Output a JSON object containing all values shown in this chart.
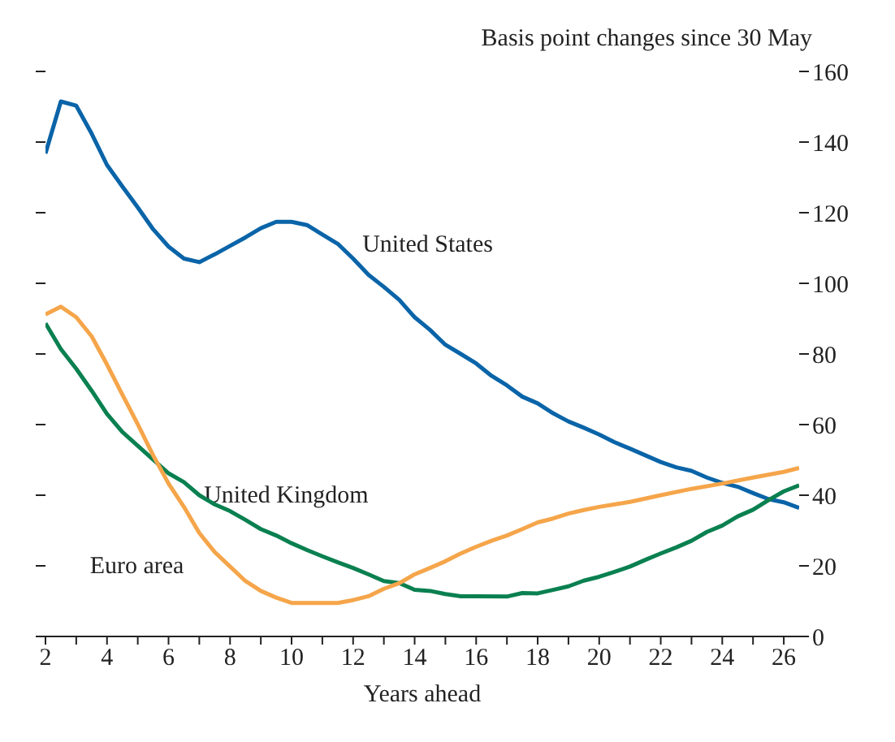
{
  "chart_data": {
    "type": "line",
    "xlabel": "Years ahead",
    "ylabel": "Basis point changes since 30 May",
    "xlim": [
      2,
      26.5
    ],
    "xticks": [
      2,
      {
        "value": 3,
        "label": null
      },
      4,
      {
        "value": 5,
        "label": null
      },
      6,
      {
        "value": 7,
        "label": null
      },
      8,
      {
        "value": 9,
        "label": null
      },
      10,
      {
        "value": 11,
        "label": null
      },
      12,
      {
        "value": 13,
        "label": null
      },
      14,
      {
        "value": 15,
        "label": null
      },
      16,
      {
        "value": 17,
        "label": null
      },
      18,
      {
        "value": 19,
        "label": null
      },
      20,
      {
        "value": 21,
        "label": null
      },
      22,
      {
        "value": 23,
        "label": null
      },
      24,
      {
        "value": 25,
        "label": null
      },
      26
    ],
    "ylim": [
      0,
      160
    ],
    "yticks": [
      0,
      20,
      40,
      60,
      80,
      100,
      120,
      140,
      160
    ],
    "grid": false,
    "legend": false,
    "marker": "none",
    "line_style": "solid",
    "series": [
      {
        "name": "United States",
        "color": "#0a64a8",
        "x": [
          2,
          2.5,
          3,
          3.5,
          4,
          4.5,
          5,
          5.5,
          6,
          6.5,
          7,
          7.5,
          8,
          8.5,
          9,
          9.5,
          10,
          10.5,
          11,
          11.5,
          12,
          12.5,
          13,
          13.5,
          14,
          14.5,
          15,
          15.5,
          16,
          16.5,
          17,
          17.5,
          18,
          18.5,
          19,
          19.5,
          20,
          20.5,
          21,
          21.5,
          22,
          22.5,
          23,
          23.5,
          24,
          24.5,
          25,
          25.5,
          26,
          26.5
        ],
        "values": [
          136.8,
          151.5,
          150.3,
          142.4,
          133.5,
          127.4,
          121.5,
          115.3,
          110.4,
          107,
          106,
          108.2,
          110.6,
          113,
          115.6,
          117.4,
          117.4,
          116.5,
          113.8,
          111.2,
          107,
          102.4,
          99,
          95.3,
          90.4,
          86.8,
          82.6,
          80,
          77.3,
          73.8,
          71.1,
          67.9,
          66,
          63.2,
          60.9,
          59.1,
          57.2,
          55,
          53.2,
          51.3,
          49.4,
          47.9,
          46.9,
          45,
          43.5,
          42.4,
          40.6,
          38.9,
          38,
          36.4
        ]
      },
      {
        "name": "United Kingdom",
        "color": "#0a8050",
        "x": [
          2,
          2.5,
          3,
          3.5,
          4,
          4.5,
          5,
          5.5,
          6,
          6.5,
          7,
          7.5,
          8,
          8.5,
          9,
          9.5,
          10,
          10.5,
          11,
          11.5,
          12,
          12.5,
          13,
          13.5,
          14,
          14.5,
          15,
          15.5,
          16,
          17,
          17.5,
          18,
          18.5,
          19,
          19.5,
          20,
          20.5,
          21,
          21.5,
          22,
          22.5,
          23,
          23.5,
          24,
          24.5,
          25,
          25.5,
          26,
          26.5
        ],
        "values": [
          88.7,
          81.4,
          75.8,
          69.6,
          63,
          57.9,
          54,
          50.1,
          46.2,
          43.7,
          40,
          37.4,
          35.5,
          33,
          30.4,
          28.6,
          26.4,
          24.5,
          22.7,
          21,
          19.4,
          17.6,
          15.7,
          15.1,
          13.2,
          12.9,
          12,
          11.4,
          11.4,
          11.3,
          12.3,
          12.2,
          13.2,
          14.2,
          15.8,
          16.9,
          18.3,
          19.8,
          21.7,
          23.5,
          25.2,
          27.1,
          29.6,
          31.4,
          34,
          35.9,
          38.6,
          41.1,
          42.8
        ]
      },
      {
        "name": "Euro area",
        "color": "#f5a54a",
        "x": [
          2,
          2.5,
          3,
          3.5,
          4,
          4.5,
          5,
          5.5,
          6,
          6.5,
          7,
          7.5,
          8,
          8.5,
          9,
          9.5,
          10,
          10.5,
          11,
          11.5,
          12,
          12.5,
          13,
          13.5,
          14,
          14.5,
          15,
          15.5,
          16,
          16.5,
          17,
          17.5,
          18,
          18.5,
          19,
          19.5,
          20,
          21,
          22,
          23,
          24,
          25,
          26,
          26.5
        ],
        "values": [
          91.2,
          93.4,
          90.4,
          85,
          77,
          68.5,
          60.1,
          51.3,
          43.3,
          36.7,
          29.3,
          23.9,
          19.8,
          15.7,
          12.9,
          11,
          9.5,
          9.5,
          9.5,
          9.5,
          10.3,
          11.4,
          13.5,
          15.1,
          17.6,
          19.4,
          21.3,
          23.5,
          25.4,
          27.1,
          28.6,
          30.4,
          32.3,
          33.4,
          34.8,
          35.8,
          36.7,
          38.1,
          40,
          41.8,
          43.3,
          45,
          46.6,
          47.7
        ]
      }
    ]
  }
}
